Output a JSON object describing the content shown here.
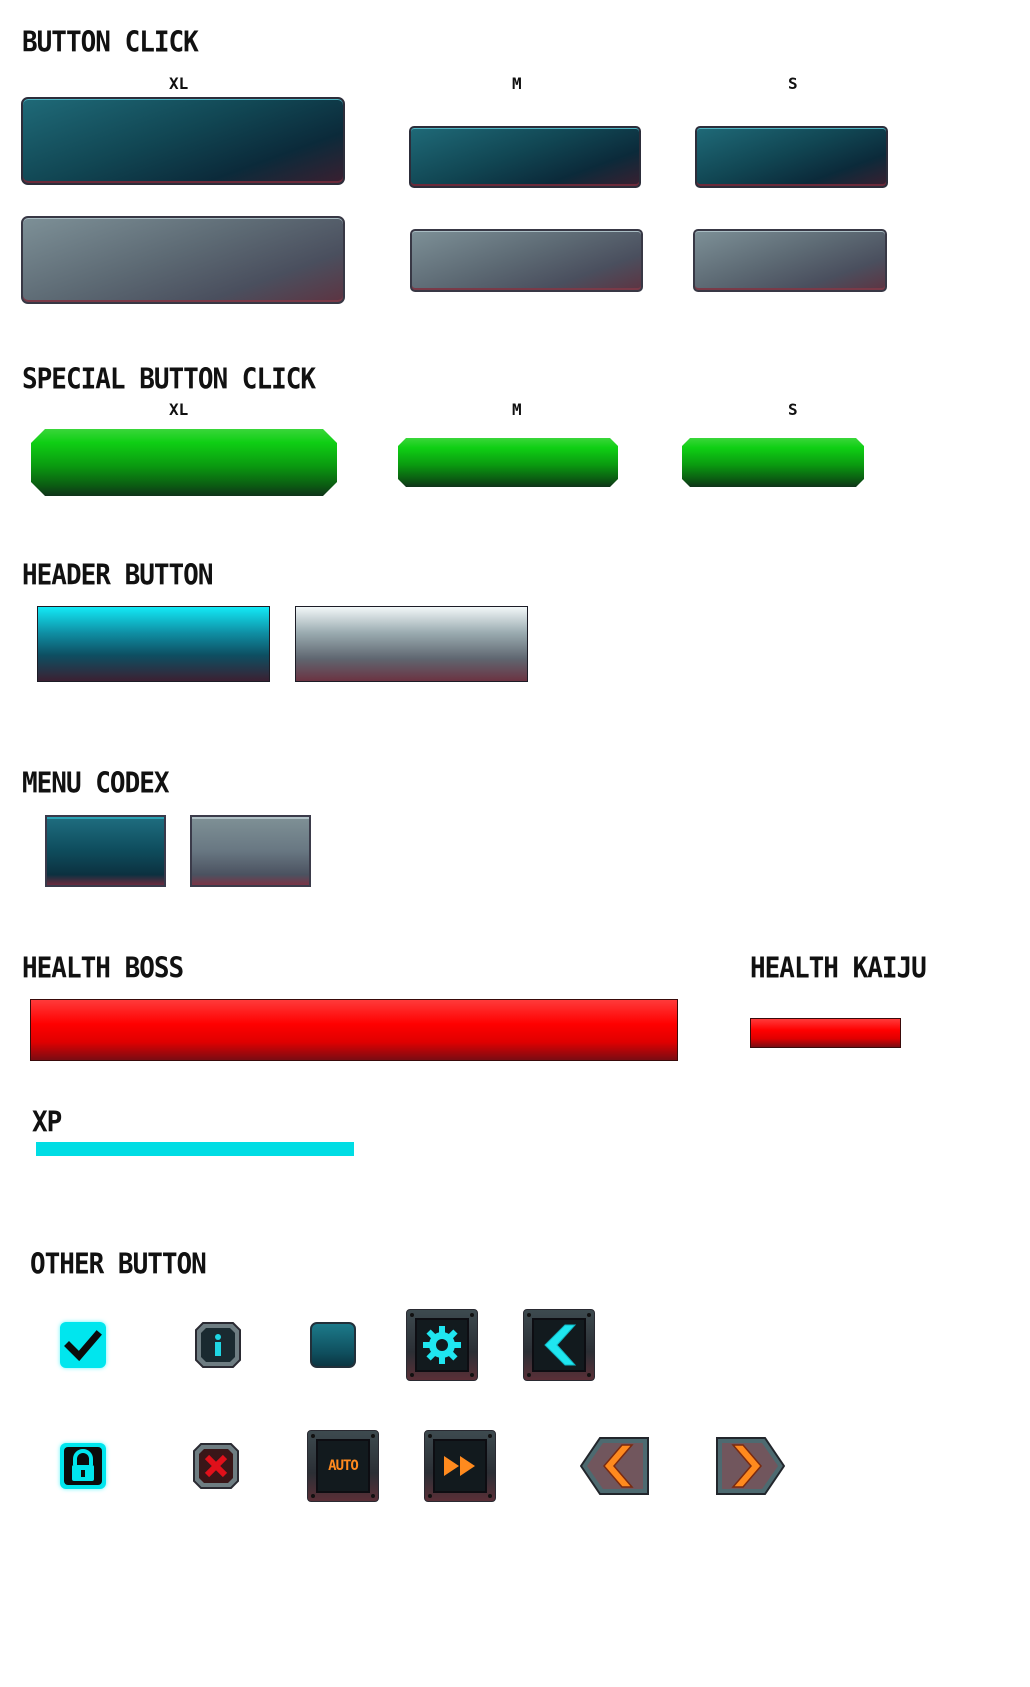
{
  "sections": {
    "button_click": "BUTTON CLICK",
    "special_button_click": "SPECIAL BUTTON CLICK",
    "header_button": "HEADER BUTTON",
    "menu_codex": "MENU CODEX",
    "health_boss": "HEALTH BOSS",
    "health_kaiju": "HEALTH KAIJU",
    "xp": "XP",
    "other_button": "OTHER BUTTON"
  },
  "sizes": {
    "xl": "XL",
    "m": "M",
    "s": "S"
  },
  "icons": {
    "check": "check-icon",
    "info": "info-icon",
    "blank": "blank-square-icon",
    "gear": "gear-icon",
    "back": "chevron-left-icon",
    "lock": "lock-icon",
    "close": "close-icon",
    "auto": "AUTO",
    "fast_forward": "fast-forward-icon",
    "arrow_left": "arrow-left-icon",
    "arrow_right": "arrow-right-icon"
  },
  "colors": {
    "teal": "#114653",
    "grey": "#5d6a74",
    "green": "#0fcf14",
    "red": "#ff0000",
    "cyan": "#00dde4",
    "orange": "#ff8a1e"
  }
}
